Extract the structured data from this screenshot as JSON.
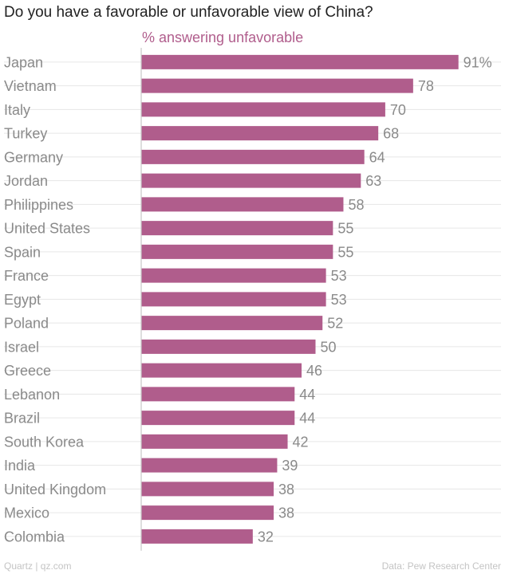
{
  "title": "Do you have a favorable or unfavorable view of China?",
  "colors": {
    "bar": "#b05d8c",
    "series_label": "#b05d8c",
    "category_text": "#8a8a8a",
    "value_text": "#8a8a8a",
    "title_text": "#222222",
    "footer_text": "#c4c4c4",
    "gridline": "#e6e6e6",
    "axis_line": "#c8c8c8"
  },
  "chart_data": {
    "type": "bar",
    "orientation": "horizontal",
    "title": "Do you have a favorable or unfavorable view of China?",
    "series_name": "% answering unfavorable",
    "categories": [
      "Japan",
      "Vietnam",
      "Italy",
      "Turkey",
      "Germany",
      "Jordan",
      "Philippines",
      "United States",
      "Spain",
      "France",
      "Egypt",
      "Poland",
      "Israel",
      "Greece",
      "Lebanon",
      "Brazil",
      "South Korea",
      "India",
      "United Kingdom",
      "Mexico",
      "Colombia"
    ],
    "values": [
      91,
      78,
      70,
      68,
      64,
      63,
      58,
      55,
      55,
      53,
      53,
      52,
      50,
      46,
      44,
      44,
      42,
      39,
      38,
      38,
      32
    ],
    "value_labels": [
      "91%",
      "78",
      "70",
      "68",
      "64",
      "63",
      "58",
      "55",
      "55",
      "53",
      "53",
      "52",
      "50",
      "46",
      "44",
      "44",
      "42",
      "39",
      "38",
      "38",
      "32"
    ],
    "xlim": [
      0,
      100
    ],
    "grid": true,
    "legend": "none"
  },
  "footer": {
    "source": "Quartz | qz.com",
    "credit": "Data: Pew Research Center"
  }
}
